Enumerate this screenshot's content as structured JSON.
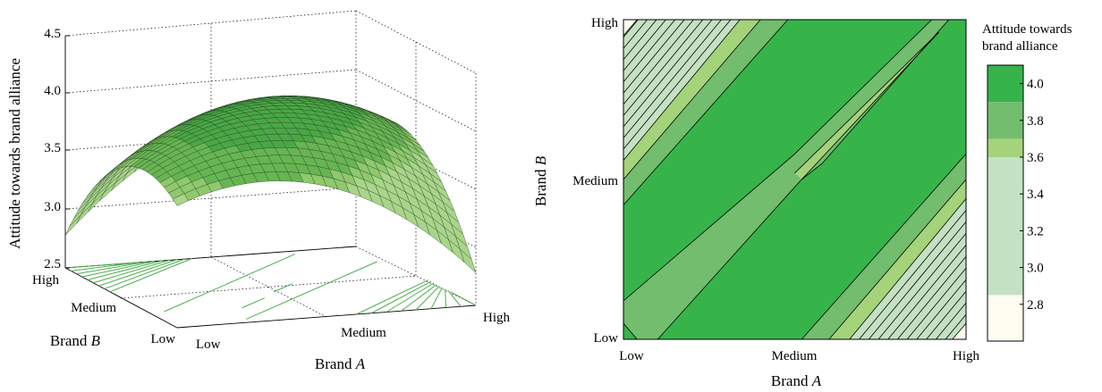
{
  "chart_data": [
    {
      "type": "surface",
      "zlabel": "Attitude towards brand alliance",
      "xlabel": "Brand A",
      "xlabel_base": "Brand ",
      "xlabel_var": "A",
      "ylabel": "Brand B",
      "ylabel_base": "Brand ",
      "ylabel_var": "B",
      "x_ticks": [
        "Low",
        "Medium",
        "High"
      ],
      "y_ticks": [
        "Low",
        "Medium",
        "High"
      ],
      "z_ticks": [
        "2.5",
        "3.0",
        "3.5",
        "4.0",
        "4.5"
      ],
      "zlim": [
        2.5,
        4.5
      ],
      "grid": true,
      "colormap": [
        "#fffdf2",
        "#c4e2c3",
        "#a4d37a",
        "#72bd6e",
        "#36b44a"
      ],
      "projected_contour_color": "#4cae4c",
      "surface_samples": {
        "points": [
          {
            "a": 0.0,
            "b": 0.0,
            "z": 3.55
          },
          {
            "a": 0.5,
            "b": 0.5,
            "z": 4.08
          },
          {
            "a": 1.0,
            "b": 1.0,
            "z": 3.55
          },
          {
            "a": 0.0,
            "b": 1.0,
            "z": 2.75
          },
          {
            "a": 1.0,
            "b": 0.0,
            "z": 2.75
          }
        ]
      }
    },
    {
      "type": "contour",
      "xlabel": "Brand A",
      "xlabel_base": "Brand ",
      "xlabel_var": "A",
      "ylabel": "Brand B",
      "ylabel_base": "Brand ",
      "ylabel_var": "B",
      "x_ticks": [
        "Low",
        "Medium",
        "High"
      ],
      "y_ticks": [
        "Low",
        "Medium",
        "High"
      ],
      "colorbar": {
        "title_line1": "Attitude towards",
        "title_line2": "brand alliance",
        "ticks": [
          "2.8",
          "3.0",
          "3.2",
          "3.4",
          "3.6",
          "3.8",
          "4.0"
        ],
        "range": [
          2.6,
          4.1
        ],
        "bands": [
          {
            "from": 2.6,
            "to": 2.85,
            "color": "#fffdf2"
          },
          {
            "from": 2.85,
            "to": 3.6,
            "color": "#c4e2c3"
          },
          {
            "from": 3.6,
            "to": 3.7,
            "color": "#a4d37a"
          },
          {
            "from": 3.7,
            "to": 3.9,
            "color": "#72bd6e"
          },
          {
            "from": 3.9,
            "to": 4.1,
            "color": "#36b44a"
          }
        ]
      },
      "regions": [
        {
          "level": "2.6-2.85",
          "location": "top-left corner and bottom-right corner",
          "color": "#fffdf2"
        },
        {
          "level": "2.85-3.6",
          "location": "off-diagonal corners (hatched with contour lines)",
          "color": "#c4e2c3"
        },
        {
          "level": "3.6-3.7",
          "location": "thin bands",
          "color": "#a4d37a"
        },
        {
          "level": "3.7-3.9",
          "location": "bands and central diagonal ridge",
          "color": "#72bd6e"
        },
        {
          "level": "3.9-4.1",
          "location": "two broad diagonal bands",
          "color": "#36b44a"
        }
      ]
    }
  ]
}
